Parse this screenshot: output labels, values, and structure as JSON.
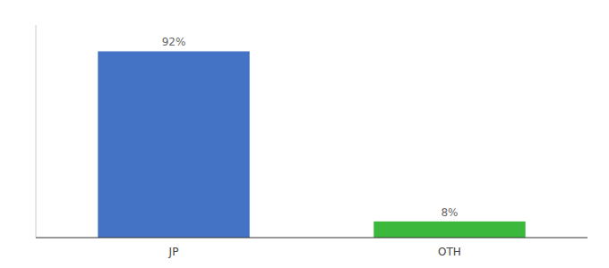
{
  "chart_data": {
    "type": "bar",
    "categories": [
      "JP",
      "OTH"
    ],
    "values": [
      92,
      8
    ],
    "value_labels": [
      "92%",
      "8%"
    ],
    "colors": [
      "#4472c4",
      "#3cb93c"
    ],
    "ylim": [
      0,
      105
    ],
    "data_labels": true,
    "tick_labels": "x",
    "grid": false
  }
}
